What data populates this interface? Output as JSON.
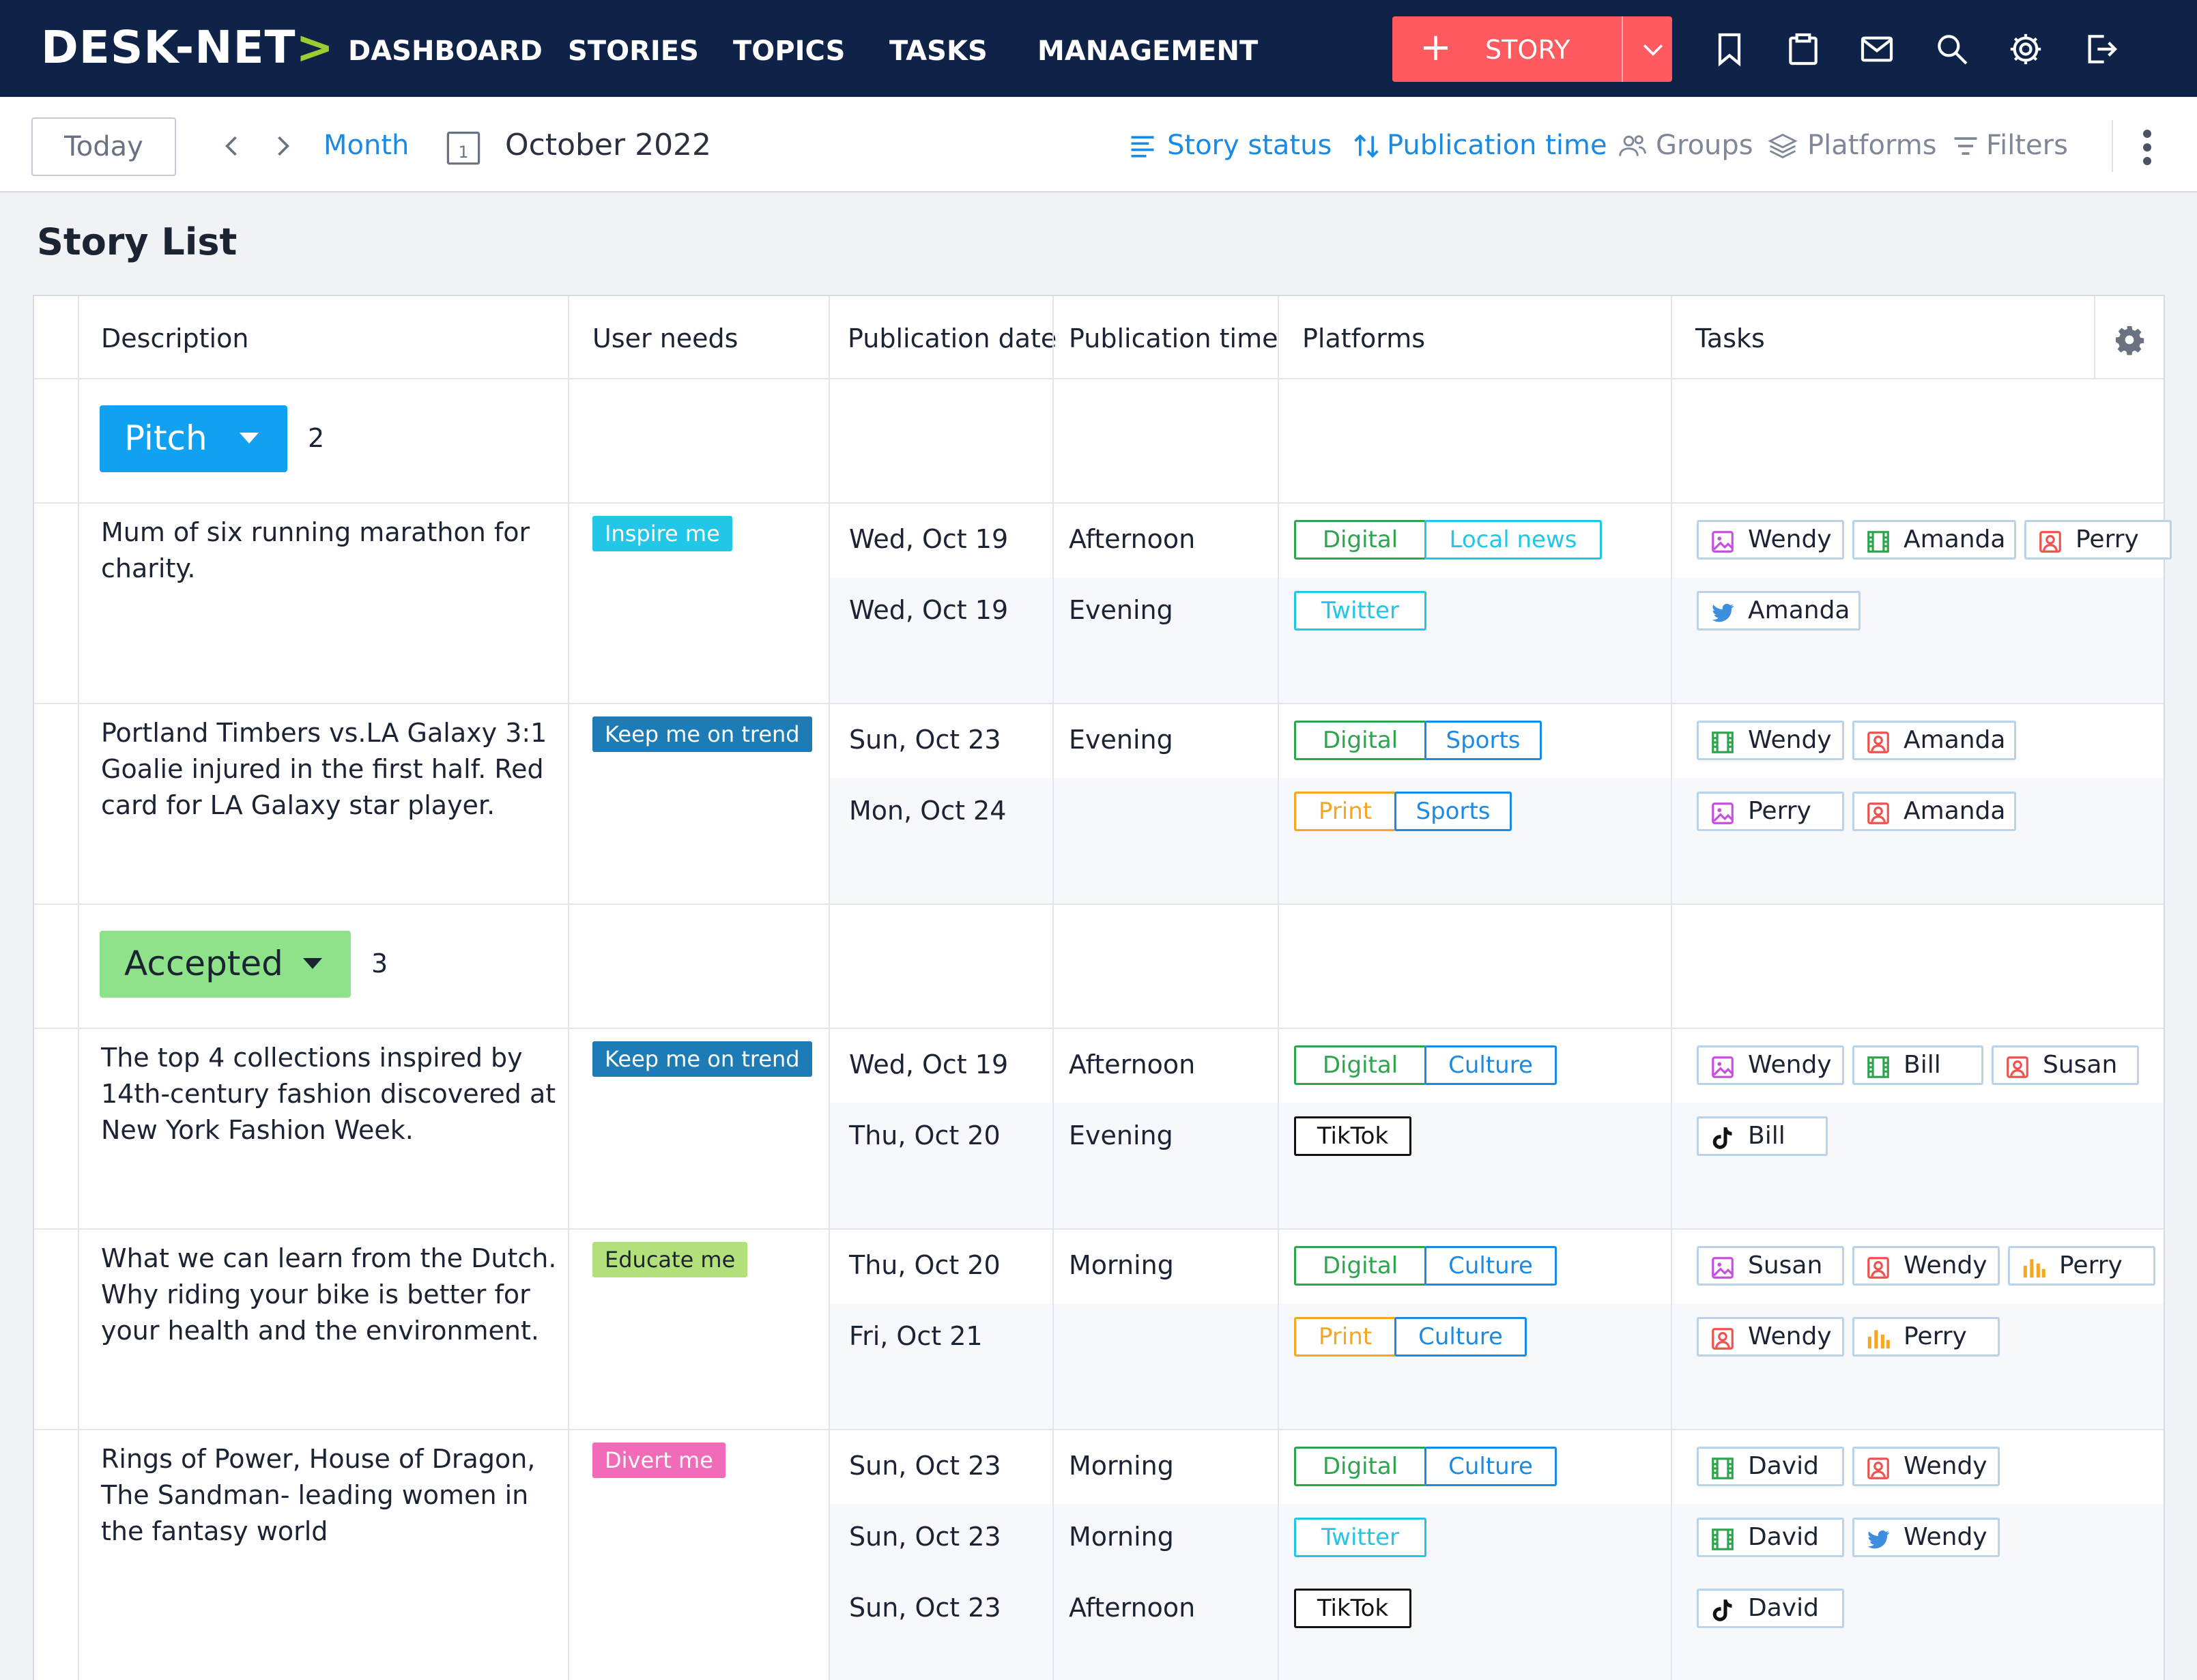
{
  "brand": {
    "logo_text": "DESK-NET",
    "logo_chevron": ">"
  },
  "nav": {
    "items": [
      {
        "label": "DASHBOARD"
      },
      {
        "label": "STORIES"
      },
      {
        "label": "TOPICS"
      },
      {
        "label": "TASKS"
      },
      {
        "label": "MANAGEMENT"
      }
    ],
    "new_story": {
      "plus": "+",
      "label": "STORY"
    },
    "icons": [
      "bookmark-icon",
      "clipboard-icon",
      "mail-icon",
      "search-icon",
      "gear-icon",
      "logout-icon"
    ]
  },
  "toolbar": {
    "today_label": "Today",
    "view_label": "Month",
    "calendar_day": "1",
    "period": "October 2022",
    "options": [
      {
        "label": "Story status",
        "icon": "list-icon",
        "active": true
      },
      {
        "label": "Publication time",
        "icon": "sort-icon",
        "active": true
      },
      {
        "label": "Groups",
        "icon": "groups-icon",
        "active": false
      },
      {
        "label": "Platforms",
        "icon": "layers-icon",
        "active": false
      },
      {
        "label": "Filters",
        "icon": "filter-icon",
        "active": false
      }
    ]
  },
  "page": {
    "title": "Story List"
  },
  "table": {
    "headers": {
      "description": "Description",
      "user_needs": "User needs",
      "publication_date": "Publication date",
      "publication_time": "Publication time",
      "platforms": "Platforms",
      "tasks": "Tasks"
    },
    "groups": [
      {
        "status": "Pitch",
        "count": "2",
        "color": "#10a2f0",
        "stories": [
          {
            "description": "Mum of six running marathon for charity.",
            "need": {
              "label": "Inspire me",
              "color": "#22c7e8"
            },
            "publications": [
              {
                "date": "Wed, Oct 19",
                "time": "Afternoon",
                "platforms": [
                  {
                    "label": "Digital",
                    "color": "#2ea44f"
                  },
                  {
                    "label": "Local news",
                    "color": "#22c7e8"
                  }
                ],
                "tasks": [
                  {
                    "name": "Wendy",
                    "icon": "image-icon"
                  },
                  {
                    "name": "Amanda",
                    "icon": "film-icon"
                  },
                  {
                    "name": "Perry",
                    "icon": "person-icon"
                  }
                ]
              },
              {
                "date": "Wed, Oct 19",
                "time": "Evening",
                "platforms": [
                  {
                    "label": "Twitter",
                    "color": "#22c7e8"
                  }
                ],
                "tasks": [
                  {
                    "name": "Amanda",
                    "icon": "twitter-icon"
                  }
                ]
              }
            ]
          },
          {
            "description": "Portland Timbers vs.LA Galaxy 3:1 Goalie injured in the first half. Red card for LA Galaxy star player.",
            "need": {
              "label": "Keep me on trend",
              "color": "#1d7bb5"
            },
            "publications": [
              {
                "date": "Sun, Oct 23",
                "time": "Evening",
                "platforms": [
                  {
                    "label": "Digital",
                    "color": "#2ea44f"
                  },
                  {
                    "label": "Sports",
                    "color": "#1a8be5"
                  }
                ],
                "tasks": [
                  {
                    "name": "Wendy",
                    "icon": "film-icon"
                  },
                  {
                    "name": "Amanda",
                    "icon": "person-icon"
                  }
                ]
              },
              {
                "date": "Mon, Oct 24",
                "time": "",
                "platforms": [
                  {
                    "label": "Print",
                    "color": "#f5a623"
                  },
                  {
                    "label": "Sports",
                    "color": "#1a8be5"
                  }
                ],
                "tasks": [
                  {
                    "name": "Perry",
                    "icon": "image-icon"
                  },
                  {
                    "name": "Amanda",
                    "icon": "person-icon"
                  }
                ]
              }
            ]
          }
        ]
      },
      {
        "status": "Accepted",
        "count": "3",
        "color": "#8ee38a",
        "stories": [
          {
            "description": "The top 4 collections inspired by 14th-century fashion discovered at New York Fashion Week.",
            "need": {
              "label": "Keep me on trend",
              "color": "#1d7bb5"
            },
            "publications": [
              {
                "date": "Wed, Oct 19",
                "time": "Afternoon",
                "platforms": [
                  {
                    "label": "Digital",
                    "color": "#2ea44f"
                  },
                  {
                    "label": "Culture",
                    "color": "#1a8be5"
                  }
                ],
                "tasks": [
                  {
                    "name": "Wendy",
                    "icon": "image-icon"
                  },
                  {
                    "name": "Bill",
                    "icon": "film-icon"
                  },
                  {
                    "name": "Susan",
                    "icon": "person-icon"
                  }
                ]
              },
              {
                "date": "Thu, Oct 20",
                "time": "Evening",
                "platforms": [
                  {
                    "label": "TikTok",
                    "color": "#111111"
                  }
                ],
                "tasks": [
                  {
                    "name": "Bill",
                    "icon": "tiktok-icon"
                  }
                ]
              }
            ]
          },
          {
            "description": "What we can learn from the Dutch. Why riding your bike is better for your health and the environment.",
            "need": {
              "label": "Educate me",
              "color": "#b4e07c"
            },
            "publications": [
              {
                "date": "Thu, Oct 20",
                "time": "Morning",
                "platforms": [
                  {
                    "label": "Digital",
                    "color": "#2ea44f"
                  },
                  {
                    "label": "Culture",
                    "color": "#1a8be5"
                  }
                ],
                "tasks": [
                  {
                    "name": "Susan",
                    "icon": "image-icon"
                  },
                  {
                    "name": "Wendy",
                    "icon": "person-icon"
                  },
                  {
                    "name": "Perry",
                    "icon": "chart-icon"
                  }
                ]
              },
              {
                "date": "Fri, Oct 21",
                "time": "",
                "platforms": [
                  {
                    "label": "Print",
                    "color": "#f5a623"
                  },
                  {
                    "label": "Culture",
                    "color": "#1a8be5"
                  }
                ],
                "tasks": [
                  {
                    "name": "Wendy",
                    "icon": "person-icon"
                  },
                  {
                    "name": "Perry",
                    "icon": "chart-icon"
                  }
                ]
              }
            ]
          },
          {
            "description": "Rings of Power, House of Dragon, The Sandman- leading women in the fantasy world",
            "need": {
              "label": "Divert me",
              "color": "#f26bb8"
            },
            "publications": [
              {
                "date": "Sun, Oct 23",
                "time": "Morning",
                "platforms": [
                  {
                    "label": "Digital",
                    "color": "#2ea44f"
                  },
                  {
                    "label": "Culture",
                    "color": "#1a8be5"
                  }
                ],
                "tasks": [
                  {
                    "name": "David",
                    "icon": "film-icon"
                  },
                  {
                    "name": "Wendy",
                    "icon": "person-icon"
                  }
                ]
              },
              {
                "date": "Sun, Oct 23",
                "time": "Morning",
                "platforms": [
                  {
                    "label": "Twitter",
                    "color": "#22c7e8"
                  }
                ],
                "tasks": [
                  {
                    "name": "David",
                    "icon": "film-icon"
                  },
                  {
                    "name": "Wendy",
                    "icon": "twitter-icon"
                  }
                ]
              },
              {
                "date": "Sun, Oct 23",
                "time": "Afternoon",
                "platforms": [
                  {
                    "label": "TikTok",
                    "color": "#111111"
                  }
                ],
                "tasks": [
                  {
                    "name": "David",
                    "icon": "tiktok-icon"
                  }
                ]
              }
            ]
          }
        ]
      }
    ]
  }
}
